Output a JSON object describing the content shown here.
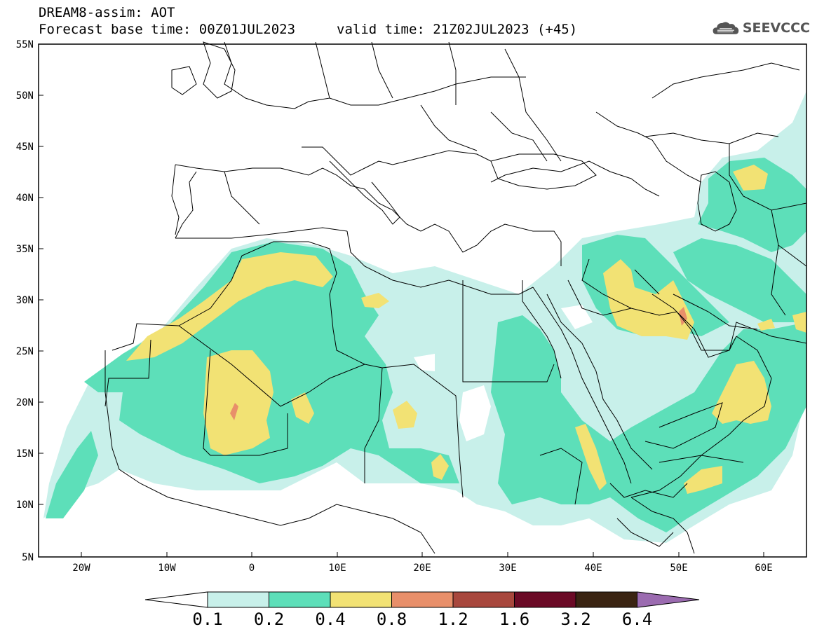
{
  "header": {
    "title": "DREAM8-assim: AOT",
    "base_time": "Forecast base time: 00Z01JUL2023",
    "valid_time": "valid time: 21Z02JUL2023 (+45)"
  },
  "logo": {
    "text": "SEEVCCC",
    "icon": "cloud-icon"
  },
  "map": {
    "lat_labels": [
      "55N",
      "50N",
      "45N",
      "40N",
      "35N",
      "30N",
      "25N",
      "20N",
      "15N",
      "10N",
      "5N"
    ],
    "lon_labels": [
      "20W",
      "10W",
      "0",
      "10E",
      "20E",
      "30E",
      "40E",
      "50E",
      "60E"
    ]
  },
  "legend": {
    "labels": [
      "0.1",
      "0.2",
      "0.4",
      "0.8",
      "1.2",
      "1.6",
      "3.2",
      "6.4"
    ],
    "colors": {
      "under": "#ffffff",
      "b1": "#c8f0ea",
      "b2": "#5ddfb9",
      "b3": "#f2e274",
      "b4": "#e88f6a",
      "b5": "#a8473d",
      "b6": "#6b0a26",
      "b7": "#3a2412",
      "over": "#9b6bb0"
    }
  }
}
